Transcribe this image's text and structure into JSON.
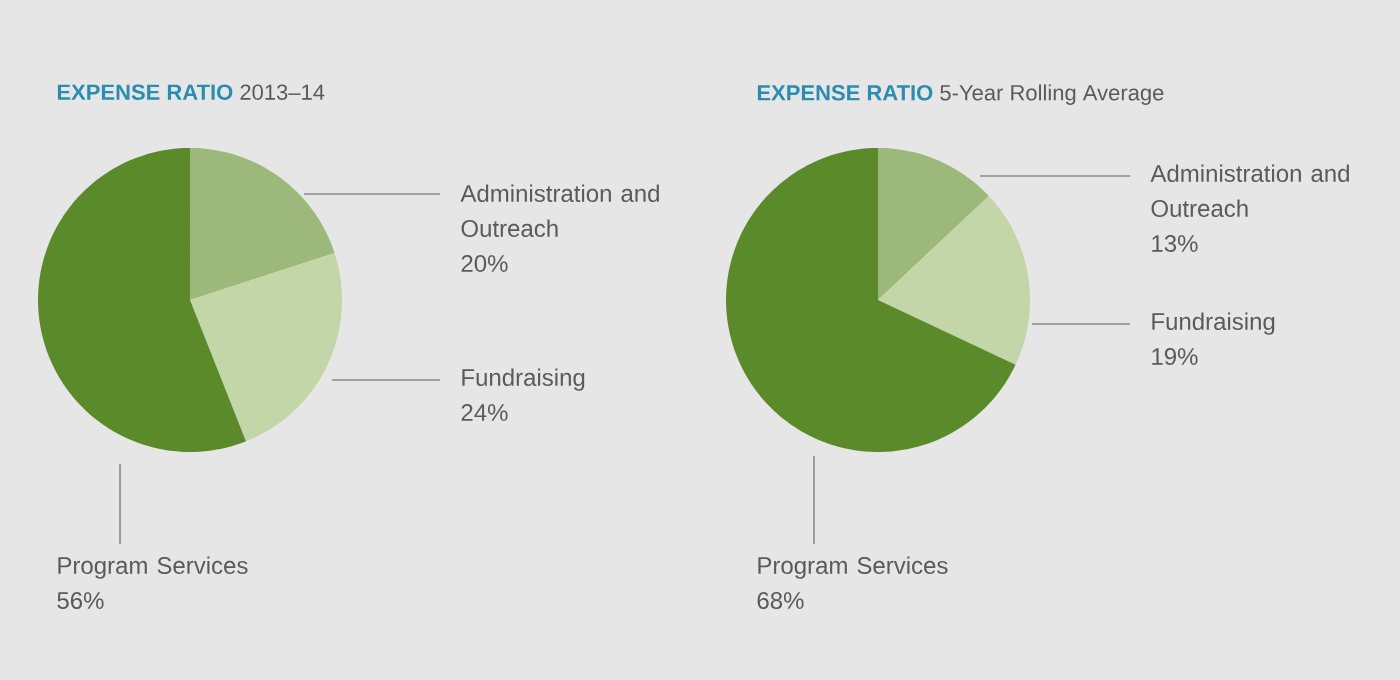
{
  "chart_data": [
    {
      "type": "pie",
      "title": "**EXPENSE RATIO** 2013–14",
      "categories": [
        "Administration and Outreach",
        "Fundraising",
        "Program Services"
      ],
      "values": [
        20,
        24,
        56
      ],
      "colors": [
        "#9cb87a",
        "#c3d6a8",
        "#5b8a2b"
      ],
      "value_labels": [
        "20%",
        "24%",
        "56%"
      ]
    },
    {
      "type": "pie",
      "title": "**EXPENSE RATIO** 5-Year Rolling Average",
      "categories": [
        "Administration and Outreach",
        "Fundraising",
        "Program Services"
      ],
      "values": [
        13,
        19,
        68
      ],
      "colors": [
        "#9cb87a",
        "#c3d6a8",
        "#5b8a2b"
      ],
      "value_labels": [
        "13%",
        "19%",
        "68%"
      ]
    }
  ]
}
